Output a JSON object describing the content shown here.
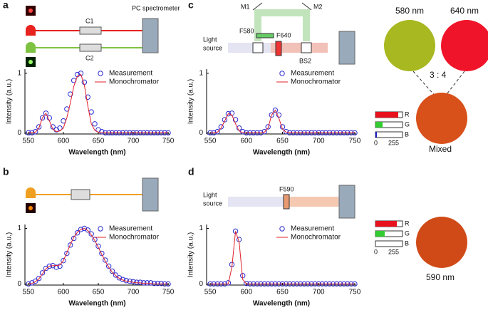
{
  "chart_data": [
    {
      "type": "line",
      "x_label": "Wavelength (nm)",
      "y_label": "Intensity (a.u.)",
      "x": [
        550,
        555,
        560,
        565,
        570,
        575,
        580,
        585,
        590,
        595,
        600,
        605,
        610,
        615,
        620,
        625,
        630,
        635,
        640,
        645,
        650,
        655,
        660,
        665,
        670,
        675,
        680,
        685,
        690,
        695,
        700,
        705,
        710,
        715,
        720,
        725,
        730,
        735,
        740,
        745,
        750
      ],
      "series": [
        {
          "name": "Measurement",
          "style": "markers",
          "color": "#2b2bd0",
          "values": [
            0,
            0,
            0.02,
            0.1,
            0.25,
            0.33,
            0.25,
            0.1,
            0.05,
            0.08,
            0.2,
            0.4,
            0.65,
            0.88,
            0.98,
            1.0,
            0.85,
            0.6,
            0.35,
            0.15,
            0.05,
            0.02,
            0,
            0,
            0,
            0,
            0,
            0,
            0,
            0,
            0,
            0,
            0,
            0,
            0,
            0,
            0,
            0,
            0,
            0,
            0
          ]
        },
        {
          "name": "Monochromator",
          "style": "line",
          "color": "#e0202a",
          "values": [
            0,
            0,
            0.01,
            0.08,
            0.25,
            0.33,
            0.2,
            0.06,
            0.02,
            0.03,
            0.08,
            0.25,
            0.5,
            0.78,
            0.95,
            0.98,
            0.8,
            0.45,
            0.15,
            0.04,
            0.01,
            0,
            0,
            0,
            0,
            0,
            0,
            0,
            0,
            0,
            0,
            0,
            0,
            0,
            0,
            0,
            0,
            0,
            0,
            0,
            0
          ]
        }
      ],
      "xlim": [
        545,
        752
      ],
      "xticks": [
        550,
        600,
        650,
        700,
        750
      ],
      "ylim": [
        -0.02,
        1.07
      ],
      "yticks": [
        0,
        1
      ]
    },
    {
      "type": "line",
      "x_label": "Wavelength (nm)",
      "y_label": "Intensity (a.u.)",
      "x": [
        550,
        555,
        560,
        565,
        570,
        575,
        580,
        585,
        590,
        595,
        600,
        605,
        610,
        615,
        620,
        625,
        630,
        635,
        640,
        645,
        650,
        655,
        660,
        665,
        670,
        675,
        680,
        685,
        690,
        695,
        700,
        705,
        710,
        715,
        720,
        725,
        730,
        735,
        740,
        745,
        750
      ],
      "series": [
        {
          "name": "Measurement",
          "style": "markers",
          "color": "#2b2bd0",
          "values": [
            0,
            0.02,
            0.05,
            0.1,
            0.2,
            0.28,
            0.32,
            0.33,
            0.3,
            0.32,
            0.42,
            0.55,
            0.7,
            0.82,
            0.92,
            0.98,
            1.0,
            0.97,
            0.9,
            0.8,
            0.68,
            0.55,
            0.43,
            0.32,
            0.23,
            0.16,
            0.11,
            0.08,
            0.06,
            0.05,
            0.04,
            0.03,
            0.03,
            0.02,
            0.02,
            0.02,
            0.01,
            0.01,
            0.01,
            0,
            0
          ]
        },
        {
          "name": "Monochromator",
          "style": "line",
          "color": "#e0202a",
          "values": [
            0,
            0.01,
            0.04,
            0.09,
            0.18,
            0.27,
            0.32,
            0.33,
            0.33,
            0.34,
            0.42,
            0.56,
            0.71,
            0.84,
            0.93,
            0.98,
            1.0,
            0.96,
            0.88,
            0.78,
            0.66,
            0.53,
            0.41,
            0.3,
            0.21,
            0.15,
            0.1,
            0.07,
            0.05,
            0.04,
            0.03,
            0.02,
            0.02,
            0.01,
            0.01,
            0.01,
            0,
            0,
            0,
            0,
            0
          ]
        }
      ],
      "xlim": [
        545,
        752
      ],
      "xticks": [
        550,
        600,
        650,
        700,
        750
      ],
      "ylim": [
        -0.02,
        1.07
      ],
      "yticks": [
        0,
        1
      ]
    },
    {
      "type": "line",
      "x_label": "Wavelength (nm)",
      "y_label": "Intensity (a.u.)",
      "x": [
        550,
        555,
        560,
        565,
        570,
        575,
        580,
        585,
        590,
        595,
        600,
        605,
        610,
        615,
        620,
        625,
        630,
        635,
        640,
        645,
        650,
        655,
        660,
        665,
        670,
        675,
        680,
        685,
        690,
        695,
        700,
        705,
        710,
        715,
        720,
        725,
        730,
        735,
        740,
        745,
        750
      ],
      "series": [
        {
          "name": "Measurement",
          "style": "markers",
          "color": "#2b2bd0",
          "values": [
            0,
            0,
            0.02,
            0.1,
            0.22,
            0.32,
            0.33,
            0.22,
            0.08,
            0.02,
            0,
            0,
            0,
            0,
            0,
            0.02,
            0.1,
            0.3,
            0.38,
            0.3,
            0.1,
            0.02,
            0,
            0,
            0,
            0,
            0,
            0,
            0,
            0,
            0,
            0,
            0,
            0,
            0,
            0,
            0,
            0,
            0,
            0,
            0
          ]
        },
        {
          "name": "Monochromator",
          "style": "line",
          "color": "#e0202a",
          "values": [
            0,
            0,
            0.01,
            0.08,
            0.2,
            0.32,
            0.3,
            0.15,
            0.03,
            0,
            0,
            0,
            0,
            0,
            0,
            0.01,
            0.08,
            0.3,
            0.38,
            0.25,
            0.06,
            0.01,
            0,
            0,
            0,
            0,
            0,
            0,
            0,
            0,
            0,
            0,
            0,
            0,
            0,
            0,
            0,
            0,
            0,
            0,
            0
          ]
        }
      ],
      "xlim": [
        545,
        752
      ],
      "xticks": [
        550,
        600,
        650,
        700,
        750
      ],
      "ylim": [
        -0.02,
        1.07
      ],
      "yticks": [
        0,
        1
      ]
    },
    {
      "type": "line",
      "x_label": "Wavelength (nm)",
      "y_label": "Intensity (a.u.)",
      "x": [
        550,
        555,
        560,
        565,
        570,
        575,
        580,
        585,
        590,
        595,
        600,
        605,
        610,
        615,
        620,
        625,
        630,
        635,
        640,
        645,
        650,
        655,
        660,
        665,
        670,
        675,
        680,
        685,
        690,
        695,
        700,
        705,
        710,
        715,
        720,
        725,
        730,
        735,
        740,
        745,
        750
      ],
      "series": [
        {
          "name": "Measurement",
          "style": "markers",
          "color": "#2b2bd0",
          "values": [
            0,
            0,
            0,
            0,
            0,
            0.02,
            0.35,
            0.95,
            0.8,
            0.15,
            0.01,
            0,
            0,
            0,
            0,
            0,
            0,
            0,
            0,
            0,
            0,
            0,
            0,
            0,
            0,
            0,
            0,
            0,
            0,
            0,
            0,
            0,
            0,
            0,
            0,
            0,
            0,
            0,
            0,
            0,
            0
          ]
        },
        {
          "name": "Monochromator",
          "style": "line",
          "color": "#e0202a",
          "values": [
            0,
            0,
            0,
            0,
            0,
            0,
            0.3,
            0.95,
            0.75,
            0.08,
            0,
            0,
            0,
            0,
            0,
            0,
            0,
            0,
            0,
            0,
            0,
            0,
            0,
            0,
            0,
            0,
            0,
            0,
            0,
            0,
            0,
            0,
            0,
            0,
            0,
            0,
            0,
            0,
            0,
            0,
            0
          ]
        }
      ],
      "xlim": [
        545,
        752
      ],
      "xticks": [
        550,
        600,
        650,
        700,
        750
      ],
      "ylim": [
        -0.02,
        1.07
      ],
      "yticks": [
        0,
        1
      ]
    }
  ],
  "diagram": {
    "panels": [
      "a",
      "b",
      "c",
      "d"
    ],
    "spectrometer": "PC spectrometer",
    "couplers": [
      "C1",
      "C2"
    ],
    "mirrors": [
      "M1",
      "M2"
    ],
    "filters_c": [
      "F580",
      "F640"
    ],
    "splitter": "BS2",
    "filter_d": "F590",
    "light_source": [
      "Light",
      "source",
      "Light",
      "source"
    ],
    "circles": [
      "580 nm",
      "640 nm",
      "3 : 4",
      "Mixed",
      "590 nm"
    ],
    "rgb": [
      "R",
      "G",
      "B",
      "0",
      "255",
      "R",
      "G",
      "B",
      "0",
      "255"
    ]
  }
}
